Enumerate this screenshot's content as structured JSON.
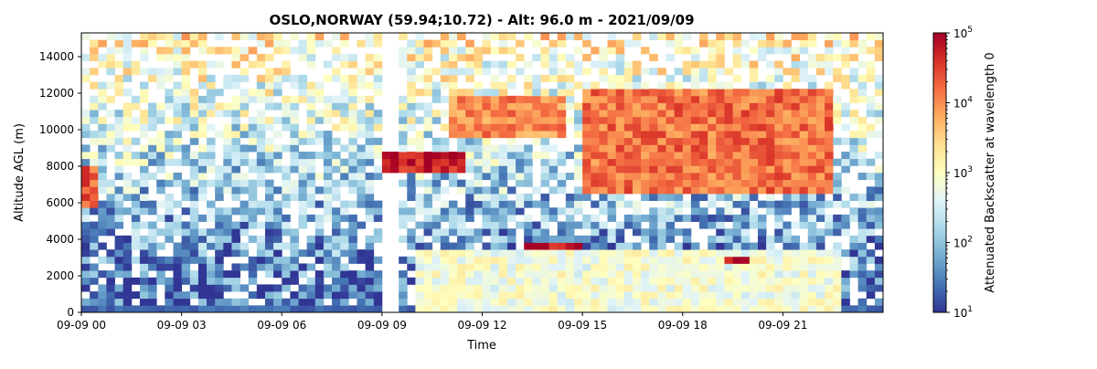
{
  "chart_data": {
    "type": "heatmap",
    "title": "OSLO,NORWAY (59.94;10.72) - Alt: 96.0 m - 2021/09/09",
    "xlabel": "Time",
    "ylabel": "Altitude AGL (m)",
    "x_range_hours": [
      0,
      24
    ],
    "x_ticks": [
      {
        "hour": 0,
        "label": "09-09 00"
      },
      {
        "hour": 3,
        "label": "09-09 03"
      },
      {
        "hour": 6,
        "label": "09-09 06"
      },
      {
        "hour": 9,
        "label": "09-09 09"
      },
      {
        "hour": 12,
        "label": "09-09 12"
      },
      {
        "hour": 15,
        "label": "09-09 15"
      },
      {
        "hour": 18,
        "label": "09-09 18"
      },
      {
        "hour": 21,
        "label": "09-09 21"
      }
    ],
    "ylim": [
      0,
      15300
    ],
    "y_ticks": [
      0,
      2000,
      4000,
      6000,
      8000,
      10000,
      12000,
      14000
    ],
    "colorbar": {
      "label": "Attenuated Backscatter at wavelength 0",
      "scale": "log",
      "range": [
        10,
        100000
      ],
      "colormap": "RdYlBu_r",
      "ticks": [
        {
          "value": 10,
          "base": "10",
          "exp": "1"
        },
        {
          "value": 100,
          "base": "10",
          "exp": "2"
        },
        {
          "value": 1000,
          "base": "10",
          "exp": "3"
        },
        {
          "value": 10000,
          "base": "10",
          "exp": "4"
        },
        {
          "value": 100000,
          "base": "10",
          "exp": "5"
        }
      ]
    },
    "features": [
      {
        "desc": "high cloud",
        "t_start": 0.0,
        "t_end": 0.4,
        "alt_bottom": 5800,
        "alt_top": 8000,
        "value": 20000
      },
      {
        "desc": "cloud band",
        "t_start": 9.0,
        "t_end": 11.5,
        "alt_bottom": 7800,
        "alt_top": 8800,
        "value": 60000
      },
      {
        "desc": "cirrus",
        "t_start": 11.0,
        "t_end": 14.5,
        "alt_bottom": 9500,
        "alt_top": 12000,
        "value": 10000
      },
      {
        "desc": "thick cloud",
        "t_start": 15.0,
        "t_end": 22.5,
        "alt_bottom": 6500,
        "alt_top": 12200,
        "value": 15000
      },
      {
        "desc": "low cloud",
        "t_start": 13.3,
        "t_end": 15.0,
        "alt_bottom": 3300,
        "alt_top": 3700,
        "value": 80000
      },
      {
        "desc": "low cloud",
        "t_start": 19.2,
        "t_end": 20.0,
        "alt_bottom": 2800,
        "alt_top": 3100,
        "value": 80000
      },
      {
        "desc": "boundary layer",
        "t_start": 10.0,
        "t_end": 22.8,
        "alt_bottom": 0,
        "alt_top": 3600,
        "value": 700
      },
      {
        "desc": "data gap",
        "t_start": 9.0,
        "t_end": 9.6,
        "alt_bottom": 0,
        "alt_top": 15300,
        "value": null
      }
    ]
  }
}
